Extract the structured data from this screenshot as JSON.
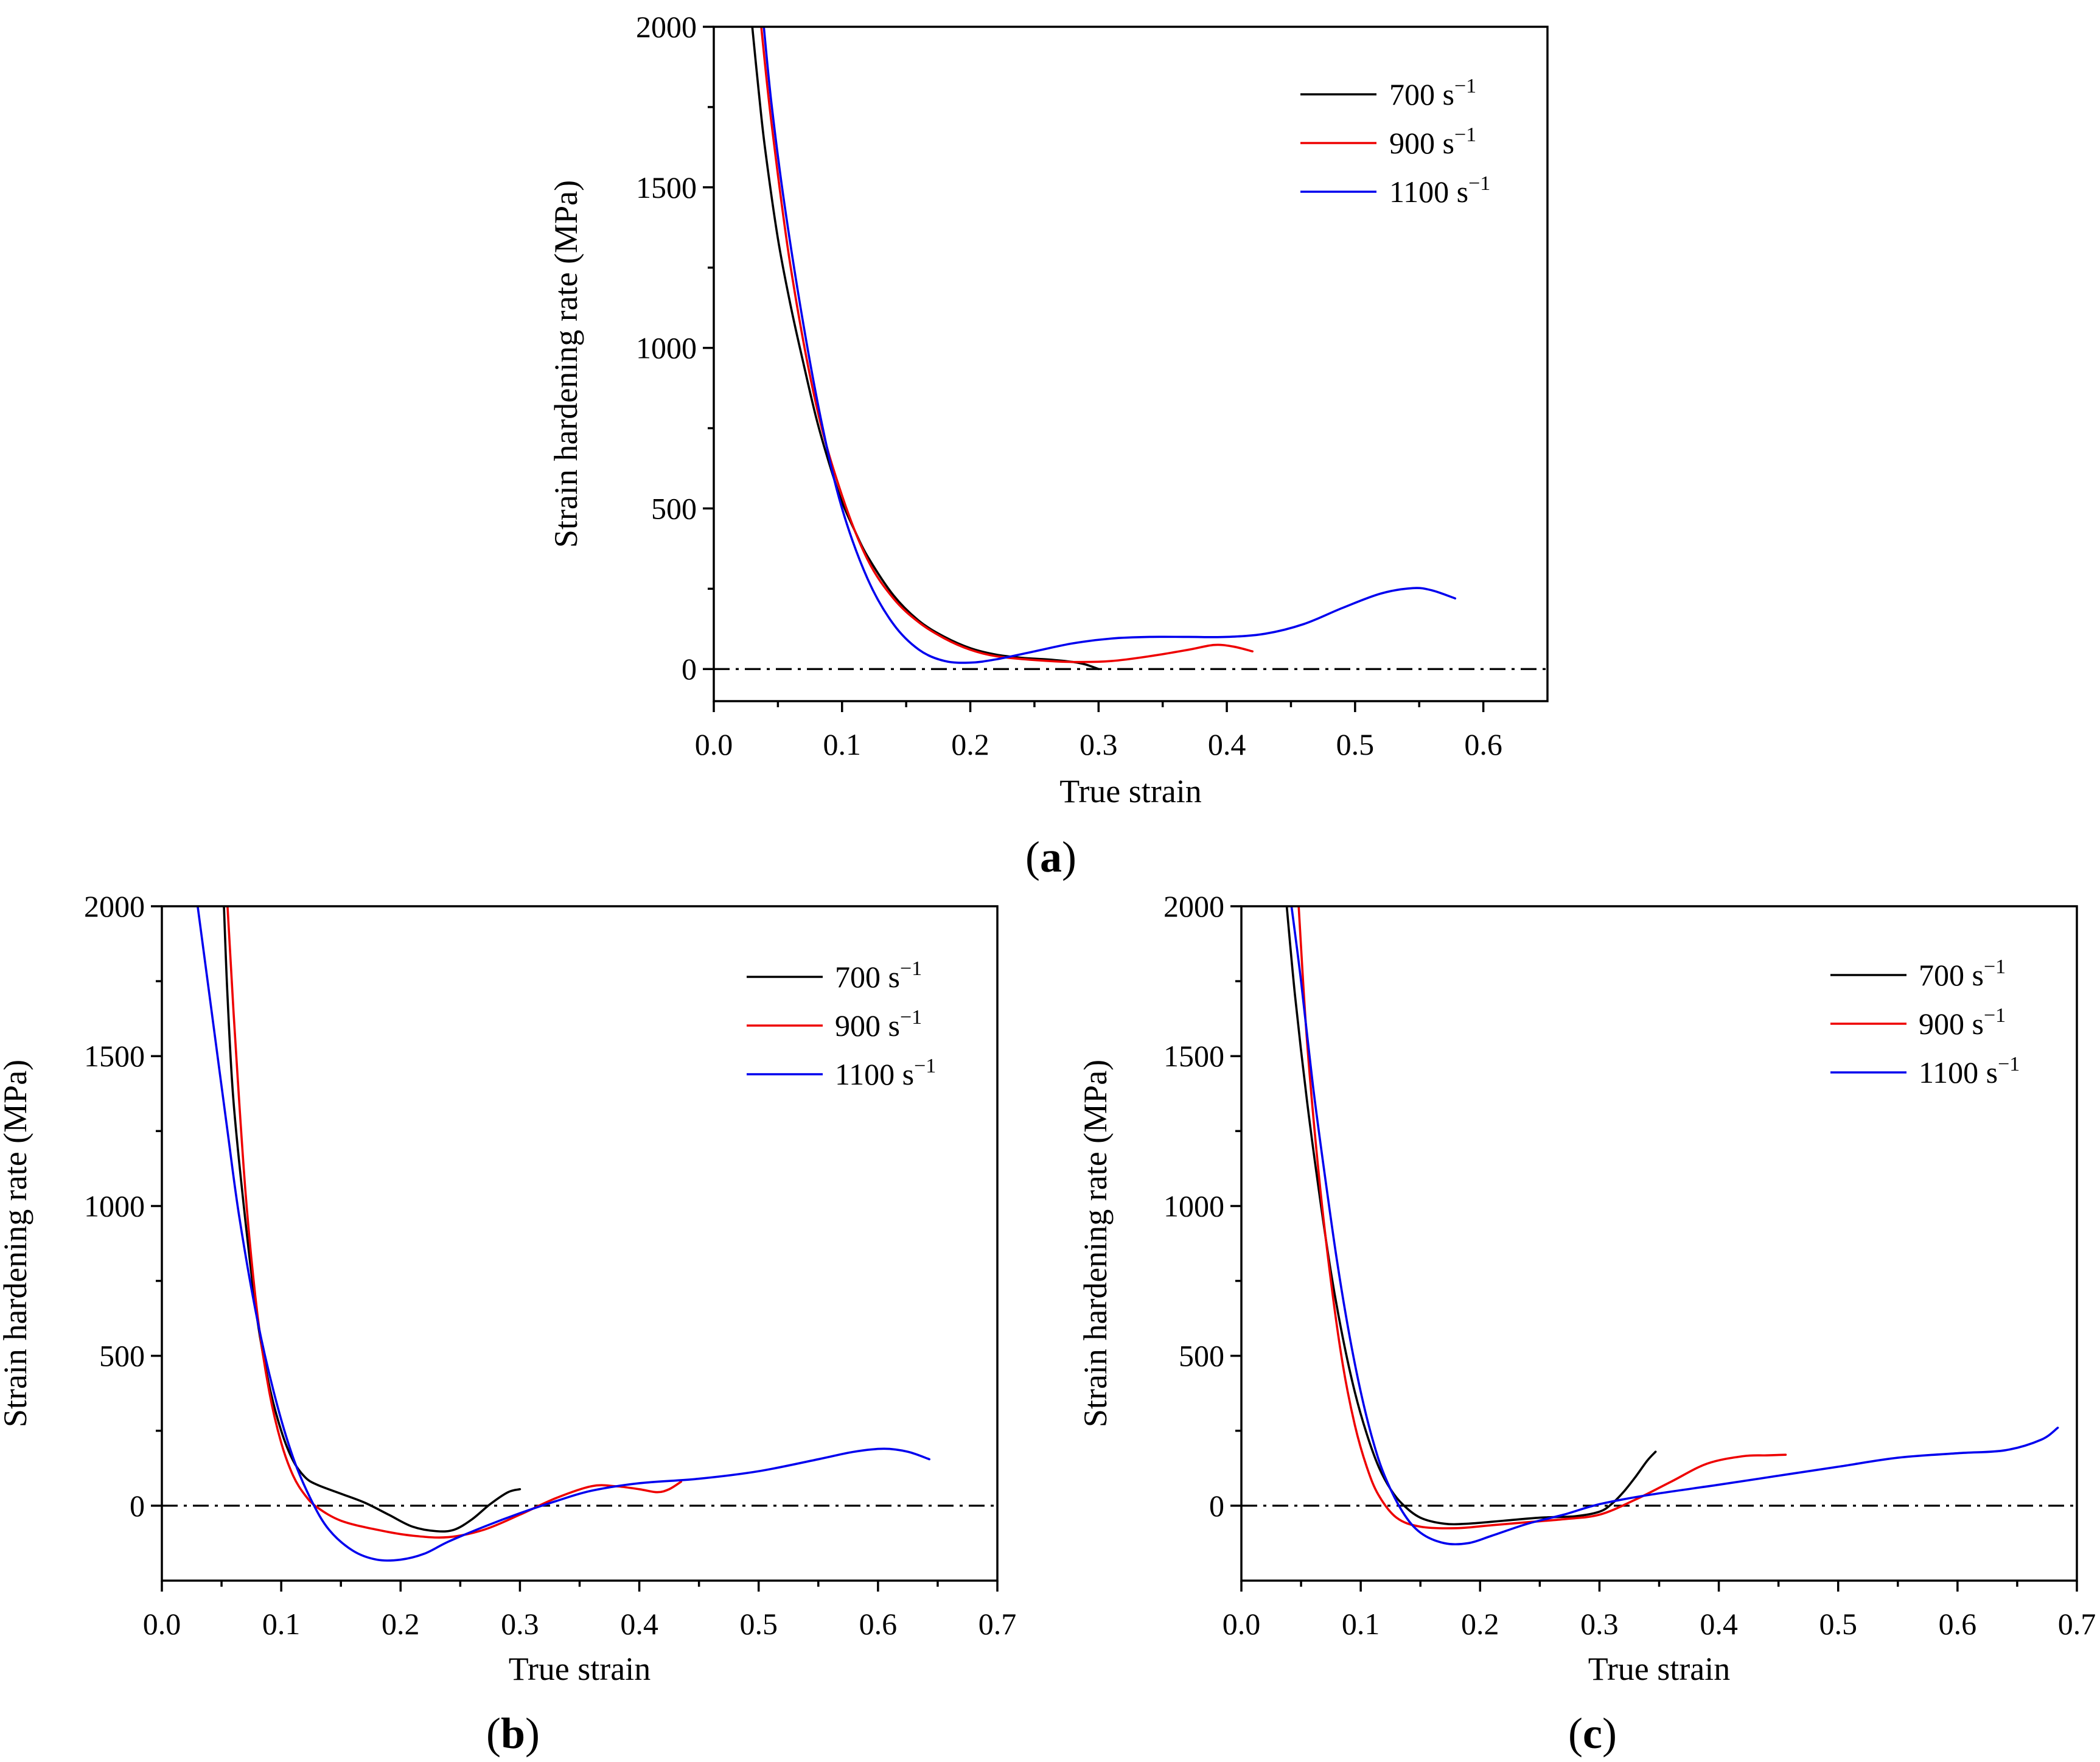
{
  "colors": {
    "black": "#000000",
    "red": "#ee0000",
    "blue": "#0000ee"
  },
  "chart_data": [
    {
      "id": "a",
      "type": "line",
      "caption": "a",
      "xlabel": "True strain",
      "ylabel": "Strain hardening rate  (MPa)",
      "xlim": [
        0.0,
        0.65
      ],
      "ylim": [
        -100,
        2000
      ],
      "xticks": [
        0.0,
        0.1,
        0.2,
        0.3,
        0.4,
        0.5,
        0.6
      ],
      "xtick_labels": [
        "0.0",
        "0.1",
        "0.2",
        "0.3",
        "0.4",
        "0.5",
        "0.6"
      ],
      "yticks": [
        0,
        500,
        1000,
        1500,
        2000
      ],
      "ytick_labels": [
        "0",
        "500",
        "1000",
        "1500",
        "2000"
      ],
      "reference_line_y": 0,
      "legend_position": "top-right",
      "series": [
        {
          "name": "700",
          "unit": "s",
          "exponent": "−1",
          "color": "#000000",
          "x": [
            0.03,
            0.035,
            0.04,
            0.05,
            0.06,
            0.07,
            0.08,
            0.09,
            0.1,
            0.11,
            0.12,
            0.14,
            0.16,
            0.18,
            0.2,
            0.22,
            0.24,
            0.26,
            0.28,
            0.29,
            0.3
          ],
          "y": [
            2000,
            1800,
            1620,
            1340,
            1130,
            950,
            780,
            640,
            520,
            430,
            350,
            230,
            150,
            100,
            65,
            45,
            35,
            30,
            22,
            14,
            0
          ]
        },
        {
          "name": "900",
          "unit": "s",
          "exponent": "−1",
          "color": "#ee0000",
          "x": [
            0.037,
            0.045,
            0.06,
            0.08,
            0.1,
            0.12,
            0.14,
            0.16,
            0.18,
            0.2,
            0.22,
            0.25,
            0.28,
            0.31,
            0.34,
            0.37,
            0.39,
            0.405,
            0.42
          ],
          "y": [
            2000,
            1700,
            1250,
            820,
            540,
            340,
            220,
            145,
            95,
            60,
            40,
            28,
            22,
            25,
            40,
            60,
            75,
            70,
            55
          ]
        },
        {
          "name": "1100",
          "unit": "s",
          "exponent": "−1",
          "color": "#0000ee",
          "x": [
            0.039,
            0.045,
            0.055,
            0.07,
            0.085,
            0.1,
            0.12,
            0.14,
            0.16,
            0.18,
            0.2,
            0.22,
            0.25,
            0.28,
            0.31,
            0.34,
            0.37,
            0.4,
            0.43,
            0.46,
            0.49,
            0.52,
            0.545,
            0.56,
            0.578
          ],
          "y": [
            2000,
            1760,
            1450,
            1070,
            750,
            500,
            280,
            140,
            60,
            25,
            20,
            30,
            55,
            80,
            95,
            100,
            100,
            100,
            110,
            140,
            190,
            235,
            252,
            245,
            220
          ]
        }
      ]
    },
    {
      "id": "b",
      "type": "line",
      "caption": "b",
      "xlabel": "True strain",
      "ylabel": "Strain hardening rate  (MPa)",
      "xlim": [
        0.0,
        0.7
      ],
      "ylim": [
        -250,
        2000
      ],
      "xticks": [
        0.0,
        0.1,
        0.2,
        0.3,
        0.4,
        0.5,
        0.6,
        0.7
      ],
      "xtick_labels": [
        "0.0",
        "0.1",
        "0.2",
        "0.3",
        "0.4",
        "0.5",
        "0.6",
        "0.7"
      ],
      "yticks": [
        0,
        500,
        1000,
        1500,
        2000
      ],
      "ytick_labels": [
        "0",
        "500",
        "1000",
        "1500",
        "2000"
      ],
      "reference_line_y": 0,
      "legend_position": "top-right",
      "series": [
        {
          "name": "700",
          "unit": "s",
          "exponent": "−1",
          "color": "#000000",
          "x": [
            0.052,
            0.055,
            0.06,
            0.07,
            0.08,
            0.09,
            0.1,
            0.11,
            0.12,
            0.13,
            0.15,
            0.17,
            0.19,
            0.21,
            0.23,
            0.245,
            0.26,
            0.275,
            0.29,
            0.3
          ],
          "y": [
            2000,
            1700,
            1350,
            950,
            620,
            400,
            250,
            150,
            95,
            70,
            40,
            10,
            -30,
            -70,
            -85,
            -80,
            -45,
            5,
            45,
            55
          ]
        },
        {
          "name": "900",
          "unit": "s",
          "exponent": "−1",
          "color": "#ee0000",
          "x": [
            0.055,
            0.06,
            0.07,
            0.08,
            0.09,
            0.1,
            0.11,
            0.12,
            0.13,
            0.15,
            0.18,
            0.21,
            0.24,
            0.27,
            0.3,
            0.33,
            0.36,
            0.38,
            0.4,
            0.415,
            0.425,
            0.435
          ],
          "y": [
            2000,
            1650,
            1050,
            640,
            380,
            210,
            100,
            35,
            -5,
            -50,
            -80,
            -100,
            -105,
            -80,
            -30,
            25,
            65,
            65,
            55,
            45,
            55,
            80
          ]
        },
        {
          "name": "1100",
          "unit": "s",
          "exponent": "−1",
          "color": "#0000ee",
          "x": [
            0.03,
            0.035,
            0.045,
            0.055,
            0.065,
            0.08,
            0.095,
            0.11,
            0.125,
            0.14,
            0.16,
            0.18,
            0.2,
            0.22,
            0.24,
            0.27,
            0.3,
            0.33,
            0.36,
            0.4,
            0.45,
            0.5,
            0.55,
            0.58,
            0.605,
            0.625,
            0.643
          ],
          "y": [
            2000,
            1850,
            1550,
            1250,
            960,
            620,
            360,
            160,
            20,
            -80,
            -150,
            -180,
            -180,
            -160,
            -120,
            -70,
            -25,
            15,
            50,
            75,
            90,
            115,
            155,
            180,
            190,
            180,
            155
          ]
        }
      ]
    },
    {
      "id": "c",
      "type": "line",
      "caption": "c",
      "xlabel": "True strain",
      "ylabel": "Strain hardening rate  (MPa)",
      "xlim": [
        0.0,
        0.7
      ],
      "ylim": [
        -250,
        2000
      ],
      "xticks": [
        0.0,
        0.1,
        0.2,
        0.3,
        0.4,
        0.5,
        0.6,
        0.7
      ],
      "xtick_labels": [
        "0.0",
        "0.1",
        "0.2",
        "0.3",
        "0.4",
        "0.5",
        "0.6",
        "0.7"
      ],
      "yticks": [
        0,
        500,
        1000,
        1500,
        2000
      ],
      "ytick_labels": [
        "0",
        "500",
        "1000",
        "1500",
        "2000"
      ],
      "reference_line_y": 0,
      "legend_position": "top-right",
      "series": [
        {
          "name": "700",
          "unit": "s",
          "exponent": "−1",
          "color": "#000000",
          "x": [
            0.038,
            0.045,
            0.055,
            0.065,
            0.075,
            0.085,
            0.095,
            0.105,
            0.115,
            0.125,
            0.135,
            0.15,
            0.17,
            0.19,
            0.22,
            0.25,
            0.28,
            0.3,
            0.31,
            0.32,
            0.33,
            0.34,
            0.347
          ],
          "y": [
            2000,
            1700,
            1350,
            1050,
            780,
            560,
            380,
            240,
            130,
            55,
            5,
            -40,
            -60,
            -60,
            -50,
            -40,
            -35,
            -20,
            5,
            45,
            95,
            150,
            180
          ]
        },
        {
          "name": "900",
          "unit": "s",
          "exponent": "−1",
          "color": "#ee0000",
          "x": [
            0.048,
            0.055,
            0.065,
            0.075,
            0.085,
            0.095,
            0.105,
            0.115,
            0.13,
            0.15,
            0.18,
            0.21,
            0.24,
            0.27,
            0.3,
            0.33,
            0.36,
            0.39,
            0.42,
            0.44,
            0.456
          ],
          "y": [
            2000,
            1550,
            1100,
            750,
            470,
            270,
            130,
            35,
            -40,
            -70,
            -75,
            -65,
            -55,
            -45,
            -30,
            20,
            80,
            140,
            165,
            168,
            170
          ]
        },
        {
          "name": "1100",
          "unit": "s",
          "exponent": "−1",
          "color": "#0000ee",
          "x": [
            0.042,
            0.05,
            0.06,
            0.07,
            0.08,
            0.09,
            0.1,
            0.11,
            0.12,
            0.135,
            0.15,
            0.17,
            0.19,
            0.21,
            0.24,
            0.27,
            0.3,
            0.34,
            0.4,
            0.45,
            0.5,
            0.55,
            0.6,
            0.64,
            0.67,
            0.684
          ],
          "y": [
            2000,
            1750,
            1400,
            1100,
            820,
            580,
            380,
            220,
            100,
            -20,
            -90,
            -125,
            -125,
            -100,
            -60,
            -30,
            5,
            35,
            70,
            100,
            130,
            160,
            175,
            185,
            220,
            260
          ]
        }
      ]
    }
  ]
}
